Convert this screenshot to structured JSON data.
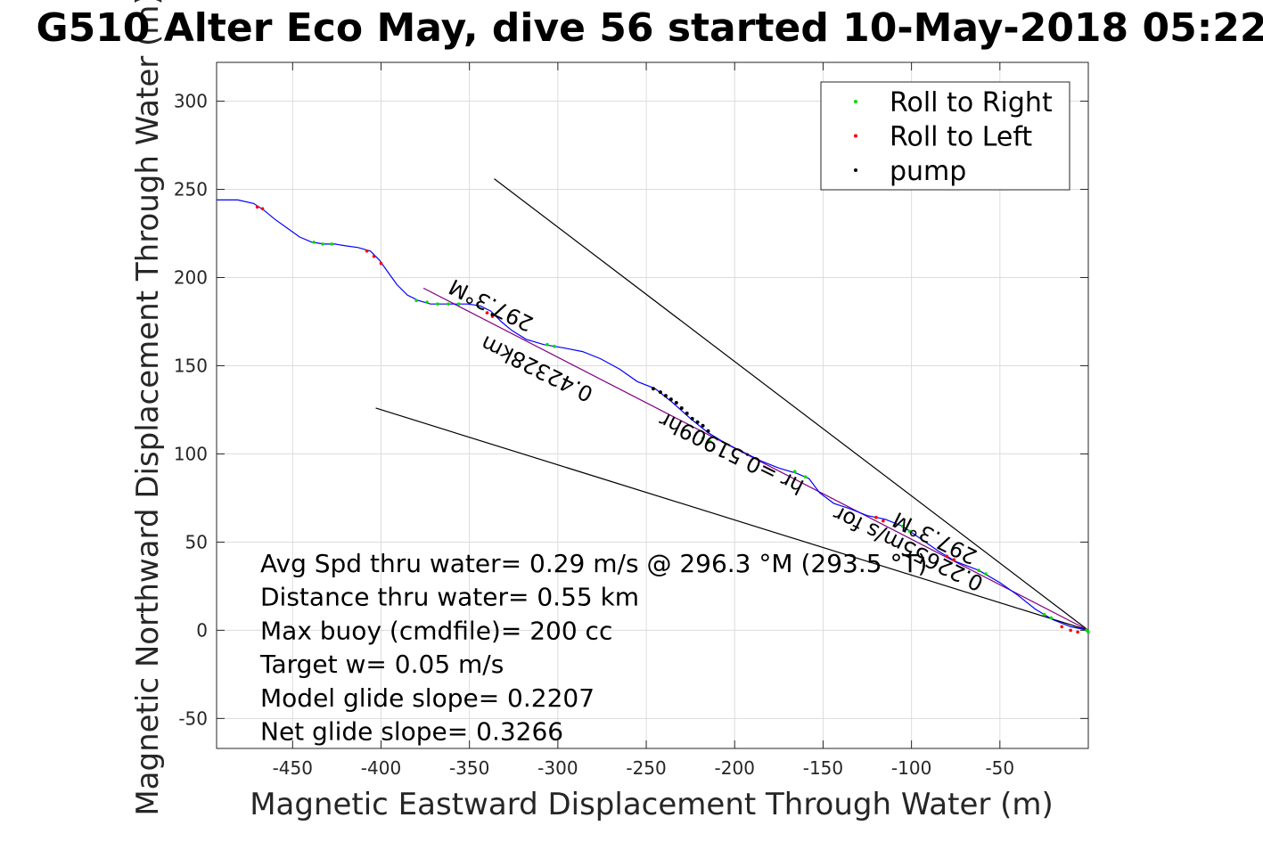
{
  "chart_data": {
    "type": "line",
    "title": "G510 Alter Eco May, dive 56 started 10-May-2018 05:22",
    "xlabel": "Magnetic Eastward Displacement Through Water (m)",
    "ylabel": "Magnetic Northward Displacement Through Water (m)",
    "xlim": [
      -493,
      0
    ],
    "ylim": [
      -67,
      322
    ],
    "xticks": [
      -450,
      -400,
      -350,
      -300,
      -250,
      -200,
      -150,
      -100,
      -50
    ],
    "yticks": [
      -50,
      0,
      50,
      100,
      150,
      200,
      250,
      300
    ],
    "grid": true,
    "legend": {
      "placement": "top-right",
      "entries": [
        {
          "label": "Roll to Right",
          "color": "#00dd00"
        },
        {
          "label": "Roll to Left",
          "color": "#ff0000"
        },
        {
          "label": "pump",
          "color": "#000000"
        }
      ]
    },
    "track": {
      "color": "#0000ff",
      "points": [
        [
          -493,
          244
        ],
        [
          -481,
          244
        ],
        [
          -472,
          242
        ],
        [
          -466,
          238
        ],
        [
          -460,
          233
        ],
        [
          -453,
          228
        ],
        [
          -446,
          223
        ],
        [
          -439,
          220
        ],
        [
          -432,
          219
        ],
        [
          -426,
          219
        ],
        [
          -420,
          218
        ],
        [
          -413,
          217
        ],
        [
          -406,
          215
        ],
        [
          -401,
          210
        ],
        [
          -396,
          203
        ],
        [
          -391,
          196
        ],
        [
          -385,
          190
        ],
        [
          -379,
          187
        ],
        [
          -372,
          185
        ],
        [
          -365,
          185
        ],
        [
          -358,
          185
        ],
        [
          -351,
          185
        ],
        [
          -344,
          184
        ],
        [
          -338,
          181
        ],
        [
          -332,
          175
        ],
        [
          -326,
          170
        ],
        [
          -318,
          165
        ],
        [
          -308,
          162
        ],
        [
          -296,
          160
        ],
        [
          -286,
          158
        ],
        [
          -276,
          154
        ],
        [
          -265,
          148
        ],
        [
          -255,
          141
        ],
        [
          -245,
          137
        ],
        [
          -235,
          129
        ],
        [
          -225,
          120
        ],
        [
          -215,
          112
        ],
        [
          -205,
          106
        ],
        [
          -195,
          101
        ],
        [
          -185,
          96
        ],
        [
          -175,
          92
        ],
        [
          -165,
          89
        ],
        [
          -158,
          86
        ],
        [
          -152,
          78
        ],
        [
          -144,
          72
        ],
        [
          -135,
          69
        ],
        [
          -125,
          65
        ],
        [
          -115,
          63
        ],
        [
          -105,
          59
        ],
        [
          -95,
          52
        ],
        [
          -85,
          45
        ],
        [
          -75,
          39
        ],
        [
          -62,
          34
        ],
        [
          -50,
          27
        ],
        [
          -40,
          20
        ],
        [
          -30,
          12
        ],
        [
          -20,
          6
        ],
        [
          -10,
          2
        ],
        [
          0,
          0
        ]
      ]
    },
    "reference_lines": [
      {
        "color": "#000000",
        "x": [
          -336,
          0
        ],
        "y": [
          256,
          0
        ]
      },
      {
        "color": "#000000",
        "x": [
          -403,
          0
        ],
        "y": [
          126,
          0
        ]
      },
      {
        "color": "#800080",
        "x": [
          -376,
          0
        ],
        "y": [
          194,
          0
        ]
      }
    ],
    "markers": {
      "roll_right": [
        [
          -438,
          220
        ],
        [
          -433,
          219
        ],
        [
          -428,
          219
        ],
        [
          -380,
          187
        ],
        [
          -374,
          186
        ],
        [
          -368,
          185
        ],
        [
          -362,
          185
        ],
        [
          -356,
          185
        ],
        [
          -306,
          162
        ],
        [
          -302,
          161
        ],
        [
          -218,
          109
        ],
        [
          -214,
          107
        ],
        [
          -166,
          90
        ],
        [
          -160,
          87
        ],
        [
          -105,
          59
        ],
        [
          -101,
          56
        ],
        [
          -62,
          34
        ],
        [
          -58,
          32
        ],
        [
          -25,
          9
        ],
        [
          -21,
          7
        ],
        [
          -1,
          0
        ],
        [
          0,
          -1
        ]
      ],
      "roll_left": [
        [
          -470,
          240
        ],
        [
          -467,
          239
        ],
        [
          -408,
          215
        ],
        [
          -404,
          212
        ],
        [
          -400,
          208
        ],
        [
          -340,
          180
        ],
        [
          -337,
          178
        ],
        [
          -120,
          64
        ],
        [
          -116,
          62
        ],
        [
          -80,
          42
        ],
        [
          -76,
          40
        ],
        [
          -15,
          2
        ],
        [
          -10,
          0
        ],
        [
          -6,
          -1
        ]
      ],
      "pump": [
        [
          -337,
          179
        ],
        [
          -246,
          137
        ],
        [
          -242,
          135
        ],
        [
          -239,
          133
        ],
        [
          -236,
          131
        ],
        [
          -233,
          129
        ],
        [
          -230,
          126
        ],
        [
          -227,
          123
        ],
        [
          -224,
          120
        ],
        [
          -221,
          118
        ],
        [
          -218,
          116
        ],
        [
          -215,
          113
        ]
      ]
    },
    "annotations": [
      {
        "id": "heading1",
        "text": "297.3°M",
        "x": -336,
        "y": 188,
        "rotation": 206.3,
        "font_size": 24
      },
      {
        "id": "summary1",
        "text": "0.42328km",
        "x": -310,
        "y": 152,
        "rotation": 206.3,
        "font_size": 24
      },
      {
        "id": "summary2",
        "text": "hr =0.51909hr",
        "x": -200,
        "y": 104,
        "rotation": 206.3,
        "font_size": 24
      },
      {
        "id": "summary3",
        "text": "0.22655m/s for",
        "x": -100,
        "y": 50,
        "rotation": 206.3,
        "font_size": 24
      },
      {
        "id": "heading2",
        "text": "297.3°M",
        "x": -85,
        "y": 56,
        "rotation": 206.3,
        "font_size": 24
      }
    ],
    "stats": [
      "Avg Spd thru water=  0.29 m/s @ 296.3 °M (293.5 °T)",
      "Distance thru water=  0.55 km",
      "Max buoy (cmdfile)= 200 cc",
      "Target w= 0.05 m/s",
      "Model glide slope= 0.2207",
      "Net glide slope= 0.3266"
    ]
  }
}
